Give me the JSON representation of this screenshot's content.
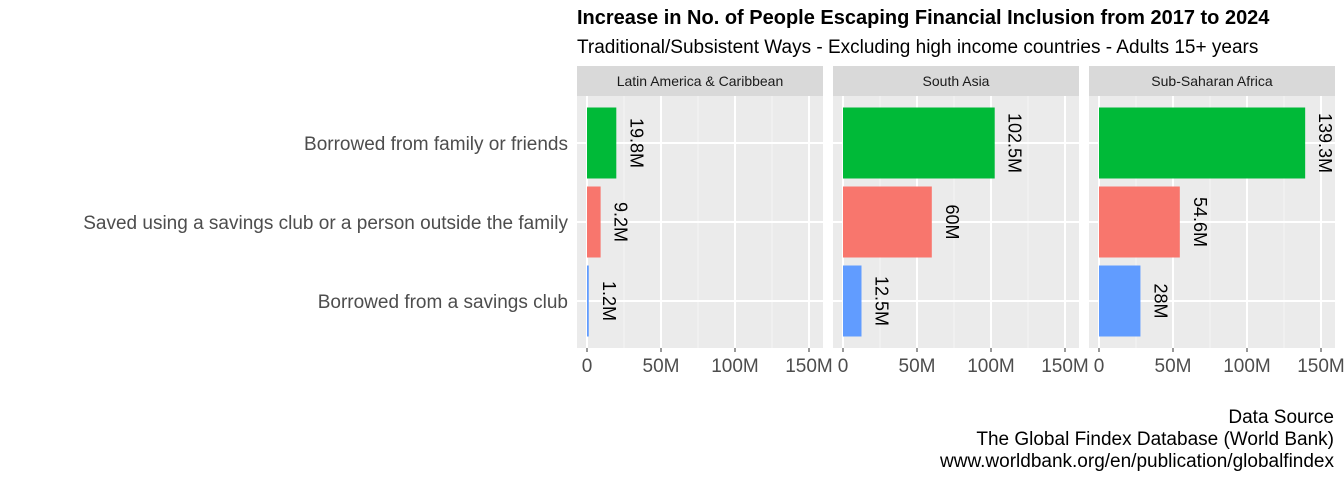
{
  "chart_data": {
    "type": "bar",
    "orientation": "horizontal",
    "title": "Increase in No. of People Escaping Financial Inclusion from 2017 to 2024",
    "subtitle": "Traditional/Subsistent Ways - Excluding high income countries - Adults 15+ years",
    "categories": [
      "Borrowed from family or friends",
      "Saved using a savings club or a person outside the family",
      "Borrowed from a savings club"
    ],
    "category_colors": [
      "#00BA38",
      "#F8766D",
      "#619CFF"
    ],
    "xlim": [
      0,
      150
    ],
    "xticks": [
      0,
      50,
      100,
      150
    ],
    "xtick_labels": [
      "0",
      "50M",
      "100M",
      "150M"
    ],
    "grid": true,
    "legend": "none",
    "panels": [
      {
        "name": "Latin America & Caribbean",
        "values": [
          19.8,
          9.2,
          1.2
        ],
        "labels": [
          "19.8M",
          "9.2M",
          "1.2M"
        ]
      },
      {
        "name": "South Asia",
        "values": [
          102.5,
          60,
          12.5
        ],
        "labels": [
          "102.5M",
          "60M",
          "12.5M"
        ]
      },
      {
        "name": "Sub-Saharan Africa",
        "values": [
          139.3,
          54.6,
          28
        ],
        "labels": [
          "139.3M",
          "54.6M",
          "28M"
        ]
      }
    ],
    "caption": [
      "Data Source",
      "The Global Findex Database (World Bank)",
      "www.worldbank.org/en/publication/globalfindex"
    ]
  }
}
